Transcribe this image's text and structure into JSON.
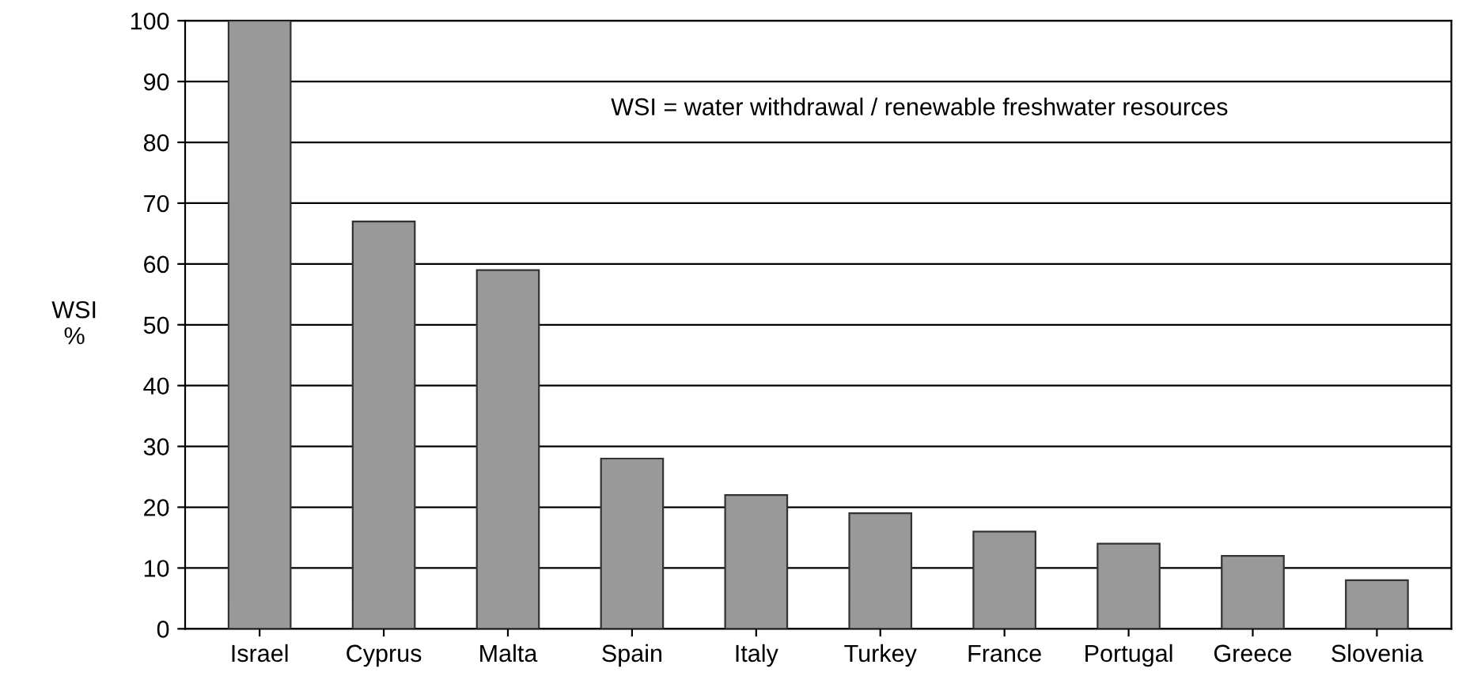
{
  "chart_data": {
    "type": "bar",
    "ylabel": "WSI\n%",
    "categories": [
      "Israel",
      "Cyprus",
      "Malta",
      "Spain",
      "Italy",
      "Turkey",
      "France",
      "Portugal",
      "Greece",
      "Slovenia"
    ],
    "values": [
      100,
      67,
      59,
      28,
      22,
      19,
      16,
      14,
      12,
      8
    ],
    "color": "#999999",
    "ylim": [
      0,
      100
    ],
    "yticks": [
      0,
      10,
      20,
      30,
      40,
      50,
      60,
      70,
      80,
      90,
      100
    ],
    "grid": "y",
    "annotations": [
      "WSI = water withdrawal / renewable freshwater resources"
    ]
  }
}
